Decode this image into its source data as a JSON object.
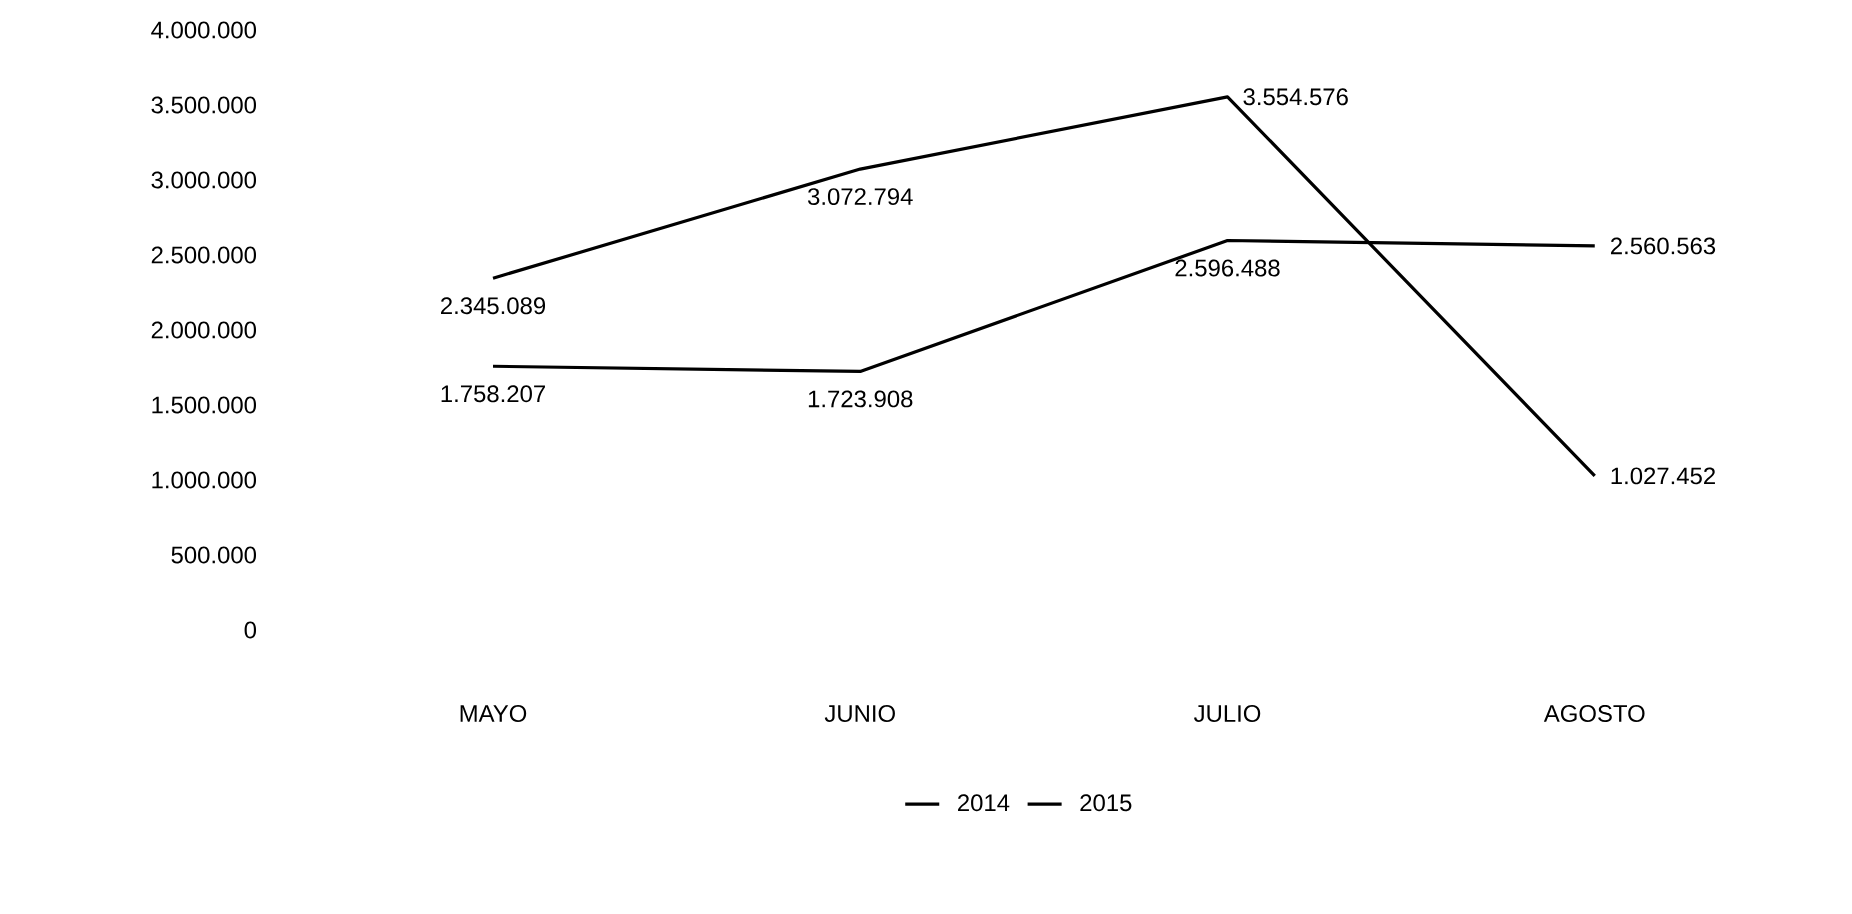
{
  "chart_data": {
    "type": "line",
    "categories": [
      "MAYO",
      "JUNIO",
      "JULIO",
      "AGOSTO"
    ],
    "series": [
      {
        "name": "2014",
        "color": "#000000",
        "values": [
          2345089,
          3072794,
          3554576,
          1027452
        ],
        "value_labels": [
          "2.345.089",
          "3.072.794",
          "3.554.576",
          "1.027.452"
        ]
      },
      {
        "name": "2015",
        "color": "#000000",
        "values": [
          1758207,
          1723908,
          2596488,
          2560563
        ],
        "value_labels": [
          "1.758.207",
          "1.723.908",
          "2.596.488",
          "2.560.563"
        ]
      }
    ],
    "ylim": [
      0,
      4000000
    ],
    "yticks": [
      0,
      {
        "value": 500000,
        "label": "500.000"
      },
      {
        "value": 1000000,
        "label": "1.000.000"
      },
      {
        "value": 1500000,
        "label": "1.500.000"
      },
      {
        "value": 2000000,
        "label": "2.000.000"
      },
      {
        "value": 2500000,
        "label": "2.500.000"
      },
      {
        "value": 3000000,
        "label": "3.000.000"
      },
      {
        "value": 3500000,
        "label": "3.500.000"
      },
      {
        "value": 4000000,
        "label": "4.000.000"
      }
    ],
    "legend": "bottom",
    "grid": false,
    "marker": "none",
    "line_style": "solid"
  }
}
